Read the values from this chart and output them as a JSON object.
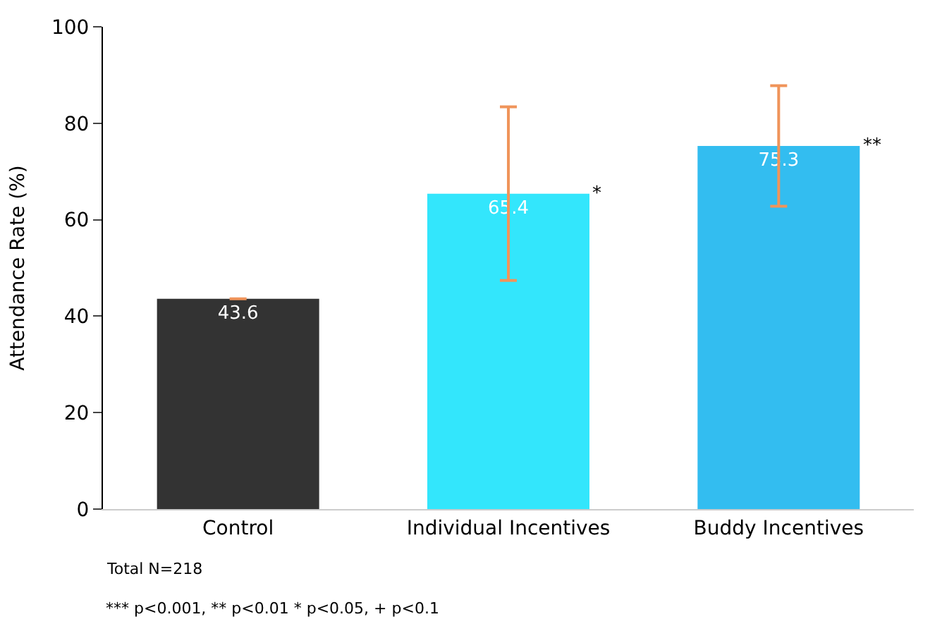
{
  "chart_data": {
    "type": "bar",
    "ylabel": "Attendance Rate (%)",
    "categories": [
      "Control",
      "Individual Incentives",
      "Buddy Incentives"
    ],
    "values": [
      43.6,
      65.4,
      75.3
    ],
    "colors": [
      "#333333",
      "#33e6fc",
      "#33bdf0"
    ],
    "errors": [
      null,
      18,
      12.5
    ],
    "ylim": [
      0,
      100
    ],
    "yticks": [
      0,
      20,
      40,
      60,
      80,
      100
    ],
    "data_labels": true,
    "annotations": [
      "*",
      "**",
      "Total N=218",
      "*** p<0.001, ** p<0.01 * p<0.05, + p<0.1"
    ]
  }
}
